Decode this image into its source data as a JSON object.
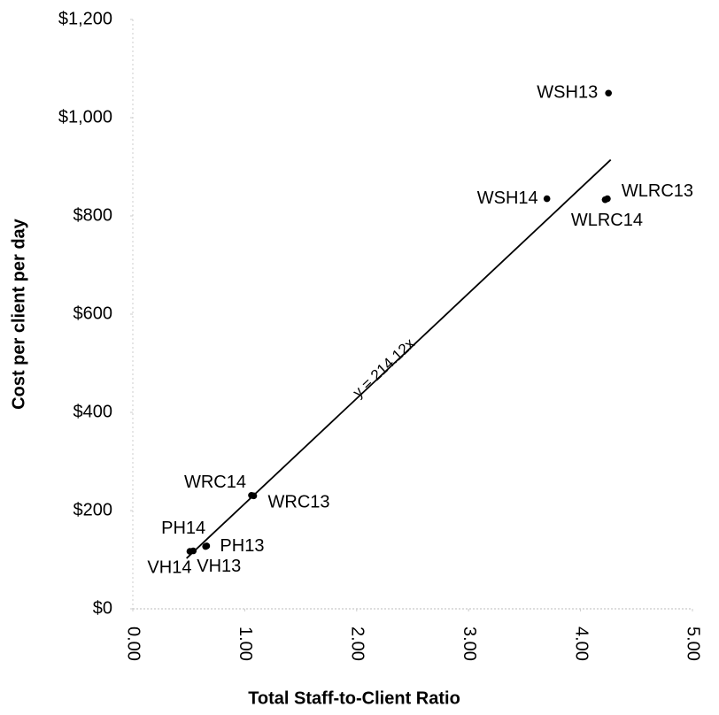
{
  "chart_data": {
    "type": "scatter",
    "x_label": "Total Staff-to-Client Ratio",
    "y_label": "Cost per client per day",
    "point_labels": [
      "WSH13",
      "WSH14",
      "WLRC13",
      "WLRC14",
      "WRC14",
      "WRC13",
      "PH14",
      "PH13",
      "VH14",
      "VH13"
    ],
    "x": [
      4.25,
      3.7,
      4.24,
      4.22,
      1.06,
      1.08,
      0.65,
      0.66,
      0.51,
      0.54
    ],
    "values": [
      1050,
      835,
      835,
      833,
      231,
      230,
      127,
      128,
      117,
      118
    ],
    "color": "#000000",
    "trendline": {
      "label": "y = 214.12x",
      "slope": 214.12,
      "x_range": [
        0.48,
        4.27
      ]
    },
    "xlim": [
      0,
      5
    ],
    "xticks": [
      {
        "value": 0,
        "label": "0.00"
      },
      {
        "value": 1,
        "label": "1.00"
      },
      {
        "value": 2,
        "label": "2.00"
      },
      {
        "value": 3,
        "label": "3.00"
      },
      {
        "value": 4,
        "label": "4.00"
      },
      {
        "value": 5,
        "label": "5.00"
      }
    ],
    "ylim": [
      0,
      1200
    ],
    "yticks": [
      {
        "value": 0,
        "label": "$0"
      },
      {
        "value": 200,
        "label": "$200"
      },
      {
        "value": 400,
        "label": "$400"
      },
      {
        "value": 600,
        "label": "$600"
      },
      {
        "value": 800,
        "label": "$800"
      },
      {
        "value": 1000,
        "label": "$1,000"
      },
      {
        "value": 1200,
        "label": "$1,200"
      }
    ],
    "grid": false
  }
}
